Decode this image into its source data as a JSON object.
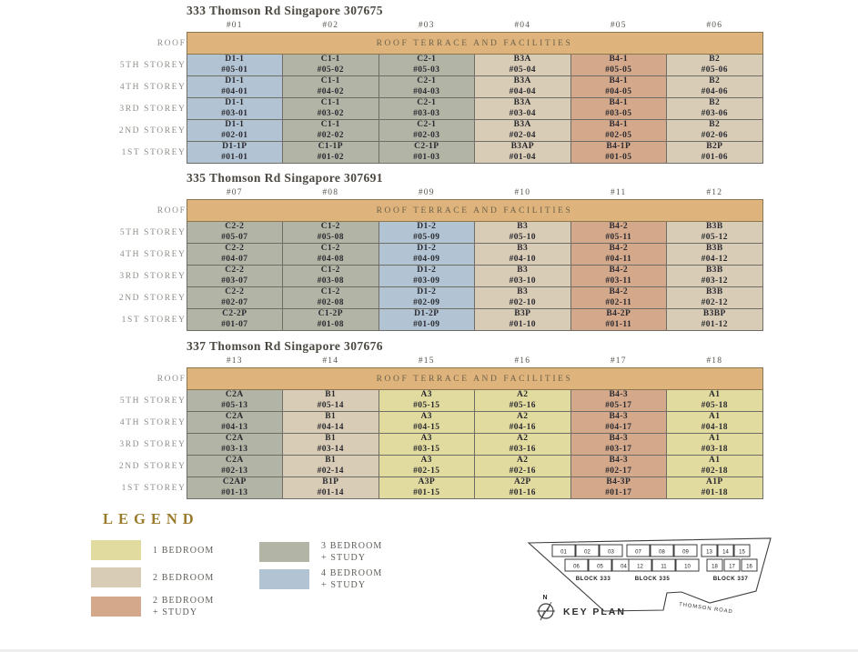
{
  "shared": {
    "roof_label": "ROOF",
    "roof_band_text": "ROOF TERRACE AND FACILITIES"
  },
  "colors": {
    "roof": "#deb47c",
    "bed1": "#e2db9f",
    "bed2": "#d8ccb6",
    "bed2s": "#d4a98b",
    "bed3s": "#b2b5a6",
    "bed4s": "#b2c4d3"
  },
  "blocks": [
    {
      "title": "333 Thomson Rd Singapore 307675",
      "columns": [
        "#01",
        "#02",
        "#03",
        "#04",
        "#05",
        "#06"
      ],
      "cats": [
        "bed4s",
        "bed3s",
        "bed3s",
        "bed2",
        "bed2s",
        "bed2"
      ],
      "rows": [
        {
          "label": "5TH STOREY",
          "cells": [
            {
              "t": "D1-1",
              "u": "#05-01"
            },
            {
              "t": "C1-1",
              "u": "#05-02"
            },
            {
              "t": "C2-1",
              "u": "#05-03"
            },
            {
              "t": "B3A",
              "u": "#05-04"
            },
            {
              "t": "B4-1",
              "u": "#05-05"
            },
            {
              "t": "B2",
              "u": "#05-06"
            }
          ]
        },
        {
          "label": "4TH STOREY",
          "cells": [
            {
              "t": "D1-1",
              "u": "#04-01"
            },
            {
              "t": "C1-1",
              "u": "#04-02"
            },
            {
              "t": "C2-1",
              "u": "#04-03"
            },
            {
              "t": "B3A",
              "u": "#04-04"
            },
            {
              "t": "B4-1",
              "u": "#04-05"
            },
            {
              "t": "B2",
              "u": "#04-06"
            }
          ]
        },
        {
          "label": "3RD STOREY",
          "cells": [
            {
              "t": "D1-1",
              "u": "#03-01"
            },
            {
              "t": "C1-1",
              "u": "#03-02"
            },
            {
              "t": "C2-1",
              "u": "#03-03"
            },
            {
              "t": "B3A",
              "u": "#03-04"
            },
            {
              "t": "B4-1",
              "u": "#03-05"
            },
            {
              "t": "B2",
              "u": "#03-06"
            }
          ]
        },
        {
          "label": "2ND STOREY",
          "cells": [
            {
              "t": "D1-1",
              "u": "#02-01"
            },
            {
              "t": "C1-1",
              "u": "#02-02"
            },
            {
              "t": "C2-1",
              "u": "#02-03"
            },
            {
              "t": "B3A",
              "u": "#02-04"
            },
            {
              "t": "B4-1",
              "u": "#02-05"
            },
            {
              "t": "B2",
              "u": "#02-06"
            }
          ]
        },
        {
          "label": "1ST STOREY",
          "cells": [
            {
              "t": "D1-1P",
              "u": "#01-01"
            },
            {
              "t": "C1-1P",
              "u": "#01-02"
            },
            {
              "t": "C2-1P",
              "u": "#01-03"
            },
            {
              "t": "B3AP",
              "u": "#01-04"
            },
            {
              "t": "B4-1P",
              "u": "#01-05"
            },
            {
              "t": "B2P",
              "u": "#01-06"
            }
          ]
        }
      ]
    },
    {
      "title": "335 Thomson Rd Singapore 307691",
      "columns": [
        "#07",
        "#08",
        "#09",
        "#10",
        "#11",
        "#12"
      ],
      "cats": [
        "bed3s",
        "bed3s",
        "bed4s",
        "bed2",
        "bed2s",
        "bed2"
      ],
      "rows": [
        {
          "label": "5TH STOREY",
          "cells": [
            {
              "t": "C2-2",
              "u": "#05-07"
            },
            {
              "t": "C1-2",
              "u": "#05-08"
            },
            {
              "t": "D1-2",
              "u": "#05-09"
            },
            {
              "t": "B3",
              "u": "#05-10"
            },
            {
              "t": "B4-2",
              "u": "#05-11"
            },
            {
              "t": "B3B",
              "u": "#05-12"
            }
          ]
        },
        {
          "label": "4TH STOREY",
          "cells": [
            {
              "t": "C2-2",
              "u": "#04-07"
            },
            {
              "t": "C1-2",
              "u": "#04-08"
            },
            {
              "t": "D1-2",
              "u": "#04-09"
            },
            {
              "t": "B3",
              "u": "#04-10"
            },
            {
              "t": "B4-2",
              "u": "#04-11"
            },
            {
              "t": "B3B",
              "u": "#04-12"
            }
          ]
        },
        {
          "label": "3RD STOREY",
          "cells": [
            {
              "t": "C2-2",
              "u": "#03-07"
            },
            {
              "t": "C1-2",
              "u": "#03-08"
            },
            {
              "t": "D1-2",
              "u": "#03-09"
            },
            {
              "t": "B3",
              "u": "#03-10"
            },
            {
              "t": "B4-2",
              "u": "#03-11"
            },
            {
              "t": "B3B",
              "u": "#03-12"
            }
          ]
        },
        {
          "label": "2ND STOREY",
          "cells": [
            {
              "t": "C2-2",
              "u": "#02-07"
            },
            {
              "t": "C1-2",
              "u": "#02-08"
            },
            {
              "t": "D1-2",
              "u": "#02-09"
            },
            {
              "t": "B3",
              "u": "#02-10"
            },
            {
              "t": "B4-2",
              "u": "#02-11"
            },
            {
              "t": "B3B",
              "u": "#02-12"
            }
          ]
        },
        {
          "label": "1ST STOREY",
          "cells": [
            {
              "t": "C2-2P",
              "u": "#01-07"
            },
            {
              "t": "C1-2P",
              "u": "#01-08"
            },
            {
              "t": "D1-2P",
              "u": "#01-09"
            },
            {
              "t": "B3P",
              "u": "#01-10"
            },
            {
              "t": "B4-2P",
              "u": "#01-11"
            },
            {
              "t": "B3BP",
              "u": "#01-12"
            }
          ]
        }
      ]
    },
    {
      "title": "337 Thomson Rd Singapore 307676",
      "columns": [
        "#13",
        "#14",
        "#15",
        "#16",
        "#17",
        "#18"
      ],
      "cats": [
        "bed3s",
        "bed2",
        "bed1",
        "bed1",
        "bed2s",
        "bed1"
      ],
      "rows": [
        {
          "label": "5TH STOREY",
          "cells": [
            {
              "t": "C2A",
              "u": "#05-13"
            },
            {
              "t": "B1",
              "u": "#05-14"
            },
            {
              "t": "A3",
              "u": "#05-15"
            },
            {
              "t": "A2",
              "u": "#05-16"
            },
            {
              "t": "B4-3",
              "u": "#05-17"
            },
            {
              "t": "A1",
              "u": "#05-18"
            }
          ]
        },
        {
          "label": "4TH STOREY",
          "cells": [
            {
              "t": "C2A",
              "u": "#04-13"
            },
            {
              "t": "B1",
              "u": "#04-14"
            },
            {
              "t": "A3",
              "u": "#04-15"
            },
            {
              "t": "A2",
              "u": "#04-16"
            },
            {
              "t": "B4-3",
              "u": "#04-17"
            },
            {
              "t": "A1",
              "u": "#04-18"
            }
          ]
        },
        {
          "label": "3RD STOREY",
          "cells": [
            {
              "t": "C2A",
              "u": "#03-13"
            },
            {
              "t": "B1",
              "u": "#03-14"
            },
            {
              "t": "A3",
              "u": "#03-15"
            },
            {
              "t": "A2",
              "u": "#03-16"
            },
            {
              "t": "B4-3",
              "u": "#03-17"
            },
            {
              "t": "A1",
              "u": "#03-18"
            }
          ]
        },
        {
          "label": "2ND STOREY",
          "cells": [
            {
              "t": "C2A",
              "u": "#02-13"
            },
            {
              "t": "B1",
              "u": "#02-14"
            },
            {
              "t": "A3",
              "u": "#02-15"
            },
            {
              "t": "A2",
              "u": "#02-16"
            },
            {
              "t": "B4-3",
              "u": "#02-17"
            },
            {
              "t": "A1",
              "u": "#02-18"
            }
          ]
        },
        {
          "label": "1ST STOREY",
          "cells": [
            {
              "t": "C2AP",
              "u": "#01-13"
            },
            {
              "t": "B1P",
              "u": "#01-14"
            },
            {
              "t": "A3P",
              "u": "#01-15"
            },
            {
              "t": "A2P",
              "u": "#01-16"
            },
            {
              "t": "B4-3P",
              "u": "#01-17"
            },
            {
              "t": "A1P",
              "u": "#01-18"
            }
          ]
        }
      ]
    }
  ],
  "legend": {
    "title": "LEGEND",
    "items": [
      {
        "lines": [
          "1 BEDROOM"
        ],
        "cat": "bed1",
        "col": 0,
        "row": 0
      },
      {
        "lines": [
          "2 BEDROOM"
        ],
        "cat": "bed2",
        "col": 0,
        "row": 1
      },
      {
        "lines": [
          "2 BEDROOM",
          "+ STUDY"
        ],
        "cat": "bed2s",
        "col": 0,
        "row": 2
      },
      {
        "lines": [
          "3 BEDROOM",
          "+ STUDY"
        ],
        "cat": "bed3s",
        "col": 1,
        "row": 0
      },
      {
        "lines": [
          "4 BEDROOM",
          "+ STUDY"
        ],
        "cat": "bed4s",
        "col": 1,
        "row": 1
      }
    ]
  },
  "keyplan": {
    "title": "KEY PLAN",
    "north": "N",
    "road": "THOMSON ROAD",
    "blocks": [
      {
        "name": "BLOCK 333",
        "top": [
          "01",
          "02",
          "03"
        ],
        "bottom": [
          "06",
          "05",
          "04"
        ]
      },
      {
        "name": "BLOCK 335",
        "top": [
          "07",
          "08",
          "09"
        ],
        "bottom": [
          "12",
          "11",
          "10"
        ]
      },
      {
        "name": "BLOCK 337",
        "top": [
          "13",
          "14",
          "15"
        ],
        "bottom": [
          "18",
          "17",
          "16"
        ]
      }
    ]
  }
}
